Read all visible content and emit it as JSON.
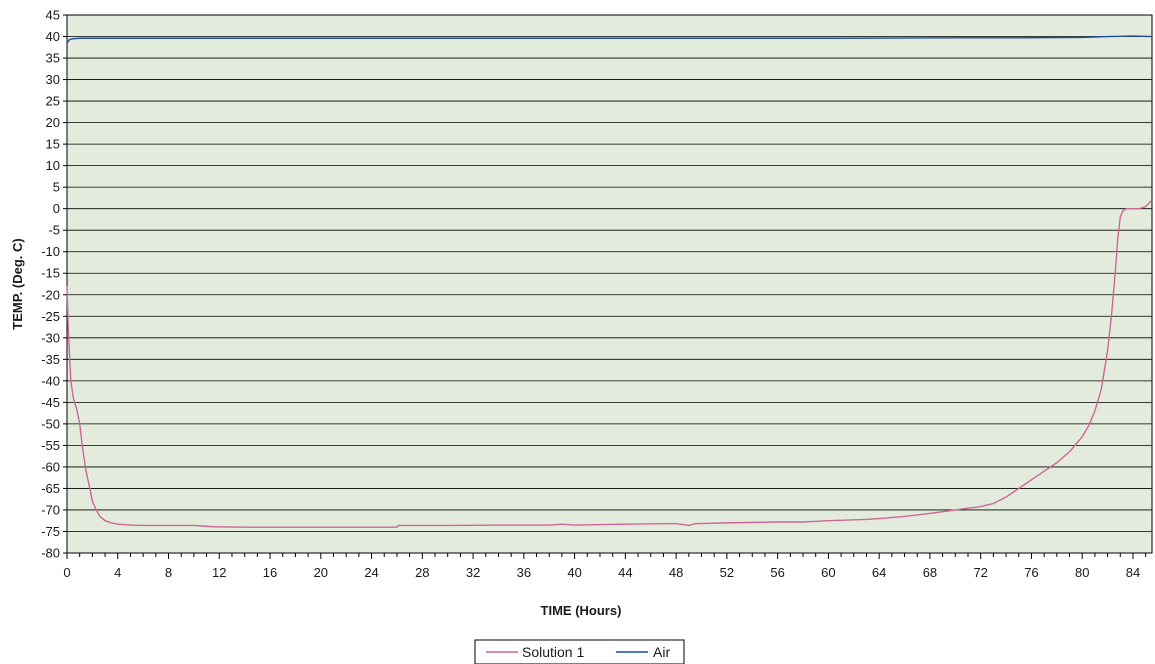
{
  "chart_data": {
    "type": "line",
    "title": "",
    "xlabel": "TIME (Hours)",
    "ylabel": "TEMP. (Deg. C)",
    "xlim": [
      0,
      85.5
    ],
    "ylim": [
      -80,
      45
    ],
    "x_ticks": [
      0,
      4,
      8,
      12,
      16,
      20,
      24,
      28,
      32,
      36,
      40,
      44,
      48,
      52,
      56,
      60,
      64,
      68,
      72,
      76,
      80,
      84
    ],
    "x_tick_labels": [
      "0",
      "4",
      "8",
      "12",
      "16",
      "20",
      "24",
      "28",
      "32",
      "36",
      "40",
      "44",
      "48",
      "52",
      "56",
      "60",
      "64",
      "68",
      "72",
      "76",
      "80",
      "84"
    ],
    "y_ticks": [
      45,
      40,
      35,
      30,
      25,
      20,
      15,
      10,
      5,
      0,
      -5,
      -10,
      -15,
      -20,
      -25,
      -30,
      -35,
      -40,
      -45,
      -50,
      -55,
      -60,
      -65,
      -70,
      -75,
      -80
    ],
    "y_tick_labels": [
      "45",
      "40",
      "35",
      "30",
      "25",
      "20",
      "15",
      "10",
      "5",
      "0",
      "-5",
      "-10",
      "-15",
      "-20",
      "-25",
      "-30",
      "-35",
      "-40",
      "-45",
      "-50",
      "-55",
      "-60",
      "-65",
      "-70",
      "-75",
      "-80"
    ],
    "grid": true,
    "legend_position": "bottom-center",
    "plot_background": "#e3ecdc",
    "series": [
      {
        "name": "Solution 1",
        "color": "#cc6699",
        "x": [
          0,
          0.1,
          0.3,
          0.5,
          0.8,
          1.0,
          1.2,
          1.5,
          1.8,
          2.0,
          2.3,
          2.6,
          3.0,
          3.5,
          4.0,
          5.0,
          6.0,
          8.0,
          10.0,
          11.5,
          14,
          18,
          22,
          26,
          26.1,
          30,
          35,
          38,
          39,
          40,
          44,
          47,
          48,
          49,
          49.5,
          52,
          56,
          58,
          60,
          63,
          64,
          66,
          68,
          70,
          72,
          73,
          74,
          75,
          76,
          77,
          78,
          79,
          80,
          80.5,
          81,
          81.5,
          82,
          82.3,
          82.6,
          82.8,
          83.0,
          83.2,
          83.5,
          84.0,
          84.5,
          85.0,
          85.5
        ],
        "values": [
          -18,
          -28,
          -40,
          -44,
          -47,
          -50,
          -55,
          -61,
          -65,
          -68,
          -70,
          -71.5,
          -72.5,
          -73,
          -73.3,
          -73.5,
          -73.6,
          -73.6,
          -73.6,
          -73.9,
          -74,
          -74,
          -74,
          -74,
          -73.6,
          -73.6,
          -73.5,
          -73.5,
          -73.3,
          -73.5,
          -73.3,
          -73.2,
          -73.2,
          -73.6,
          -73.2,
          -73.0,
          -72.8,
          -72.8,
          -72.5,
          -72.2,
          -72.0,
          -71.5,
          -70.8,
          -70.0,
          -69.2,
          -68.5,
          -67.0,
          -65.0,
          -63.0,
          -61.0,
          -59.0,
          -56.5,
          -53.0,
          -50.5,
          -47.0,
          -42.0,
          -33.0,
          -25.0,
          -15.0,
          -7.0,
          -2.0,
          -0.5,
          0,
          0,
          0,
          0.5,
          2.0
        ]
      },
      {
        "name": "Air",
        "color": "#1f4e99",
        "x": [
          0,
          0.2,
          0.5,
          1,
          10,
          20,
          30,
          40,
          50,
          60,
          70,
          75,
          80,
          82,
          84,
          85.5
        ],
        "values": [
          38.5,
          39.3,
          39.5,
          39.6,
          39.6,
          39.6,
          39.6,
          39.6,
          39.6,
          39.6,
          39.7,
          39.7,
          39.8,
          40.0,
          40.1,
          40.0
        ]
      }
    ]
  }
}
